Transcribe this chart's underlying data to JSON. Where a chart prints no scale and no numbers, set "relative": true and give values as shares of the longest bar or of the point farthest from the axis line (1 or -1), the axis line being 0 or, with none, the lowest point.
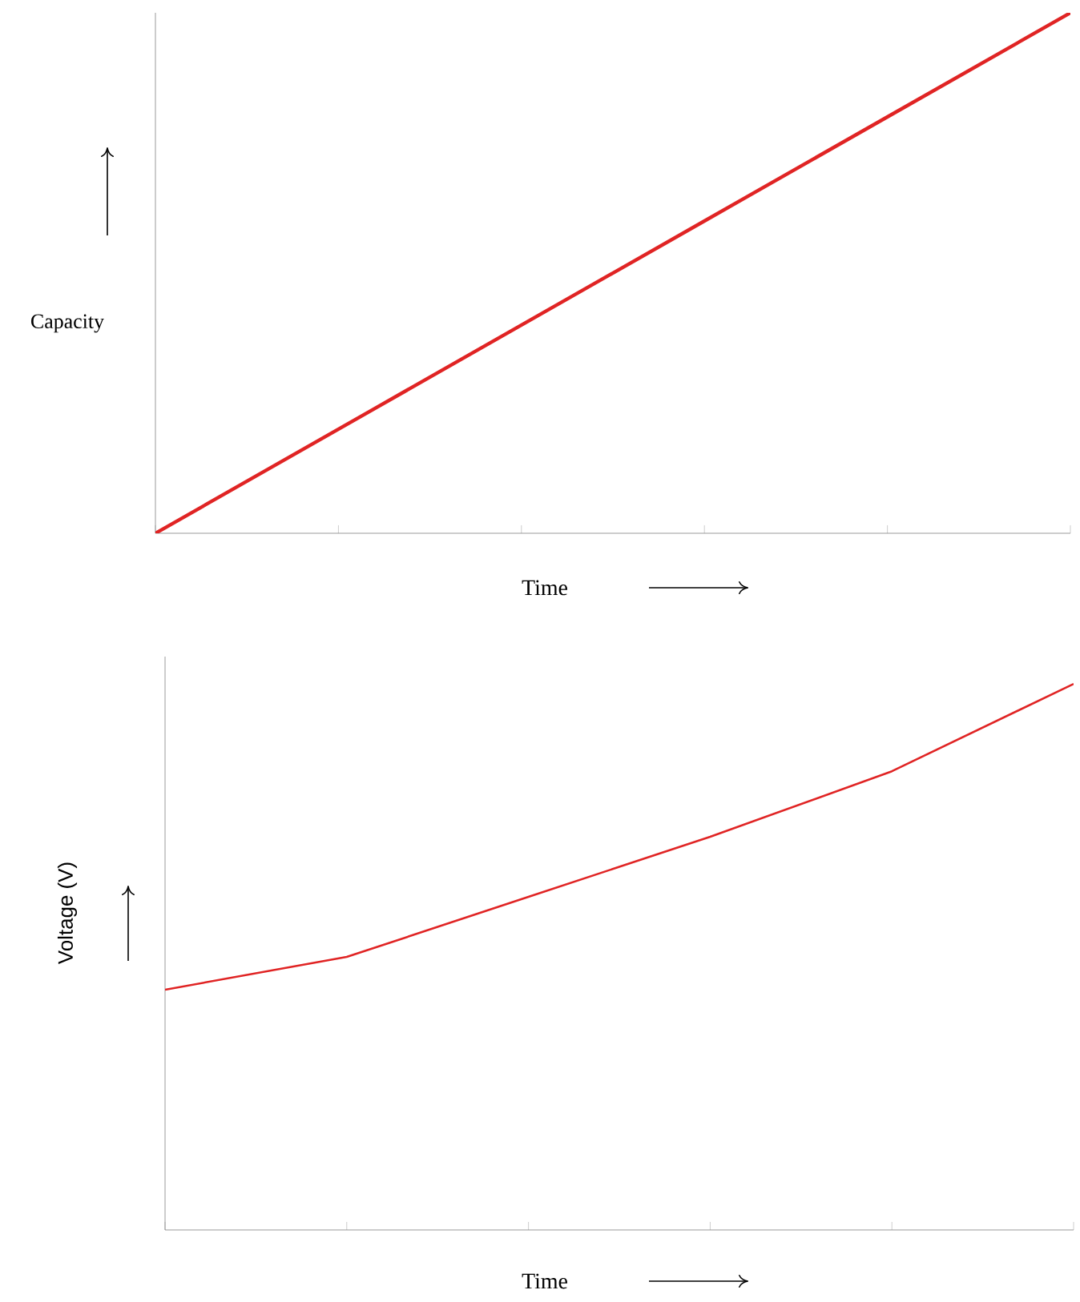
{
  "chart_data": [
    {
      "type": "line",
      "relative": true,
      "ylabel": "Capacity",
      "xlabel": "Time",
      "categories": [
        null,
        null,
        null,
        null,
        null,
        null
      ],
      "values": [
        0,
        0.2,
        0.4,
        0.6,
        0.8,
        1
      ],
      "color": "#e02424"
    },
    {
      "type": "line",
      "relative": true,
      "ylabel": "Voltage (V)",
      "xlabel": "Time",
      "categories": [
        null,
        null,
        null,
        null,
        null,
        null
      ],
      "values": [
        0.44,
        0.5,
        0.61,
        0.72,
        0.84,
        1
      ],
      "color": "#e02424"
    }
  ]
}
